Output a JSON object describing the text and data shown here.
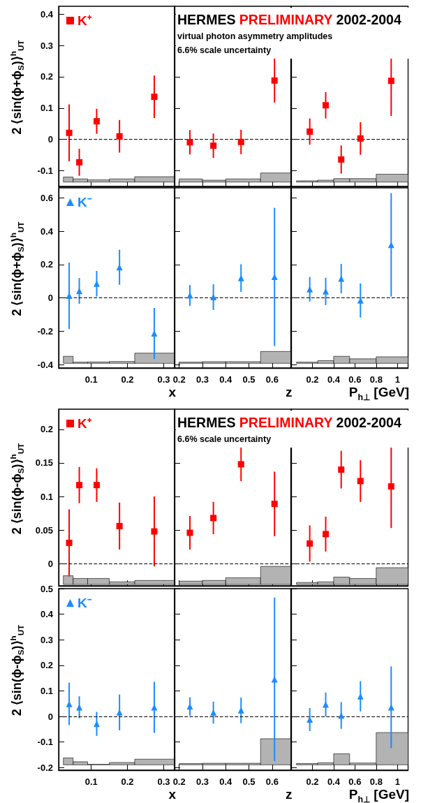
{
  "chart_data": [
    {
      "type": "scatter",
      "marker": "square",
      "ylabel": "2 ⟨sin(ϕ+ϕ$_{S}$)⟩$^{h}$$_{UT}$",
      "legend": "top left",
      "tick_labels": "y",
      "x": [
        0.039,
        0.067,
        0.115,
        0.178,
        0.274
      ],
      "xlim": [
        0.01,
        0.33
      ],
      "xticks": [
        0.1,
        0.2,
        0.3
      ],
      "ylim": [
        -0.15,
        0.425
      ],
      "yticks": [
        -0.1,
        0,
        0.1,
        0.2,
        0.3,
        0.4
      ],
      "series": [
        {
          "name": "K⁺",
          "color": "#ff0000",
          "values": [
            0.021,
            -0.073,
            0.058,
            0.01,
            0.136
          ],
          "errors": [
            0.091,
            0.043,
            0.04,
            0.052,
            0.068
          ]
        },
        {
          "type": "histogram",
          "color": "#b3b3b3",
          "bins": [
            0.023,
            0.05,
            0.09,
            0.15,
            0.22,
            0.33
          ],
          "base": [
            -0.136,
            -0.136,
            -0.136,
            -0.136,
            -0.136
          ],
          "values": [
            0.016,
            0.01,
            0.007,
            0.01,
            0.017
          ]
        }
      ],
      "ref_lines": [
        {
          "axis": "y",
          "value": 0,
          "line_style": "dashed"
        }
      ]
    },
    {
      "type": "scatter",
      "marker": "square",
      "title": "HERMES PRELIMINARY 2002-2004",
      "subtitle": "virtual photon asymmetry amplitudes\n6.6% scale uncertainty",
      "tick_labels": false,
      "x": [
        0.246,
        0.347,
        0.466,
        0.61
      ],
      "xlim": [
        0.18,
        0.68
      ],
      "xticks": [
        0.2,
        0.3,
        0.4,
        0.5,
        0.6
      ],
      "ylim": [
        -0.15,
        0.425
      ],
      "yticks": [
        -0.1,
        0,
        0.1,
        0.2,
        0.3,
        0.4
      ],
      "series": [
        {
          "color": "#ff0000",
          "values": [
            -0.009,
            -0.02,
            -0.008,
            0.188
          ],
          "errors": [
            0.039,
            0.039,
            0.039,
            0.07
          ]
        },
        {
          "type": "histogram",
          "color": "#b3b3b3",
          "bins": [
            0.2,
            0.3,
            0.4,
            0.55,
            0.68
          ],
          "base": [
            -0.136,
            -0.136,
            -0.136,
            -0.136
          ],
          "values": [
            0.01,
            0.006,
            0.01,
            0.029
          ]
        }
      ],
      "ref_lines": [
        {
          "axis": "y",
          "value": 0,
          "line_style": "dashed"
        }
      ]
    },
    {
      "type": "scatter",
      "marker": "square",
      "tick_labels": false,
      "x": [
        0.175,
        0.325,
        0.471,
        0.652,
        0.941
      ],
      "xlim": [
        0,
        1.1
      ],
      "xticks": [
        0.2,
        0.4,
        0.6,
        0.8,
        1
      ],
      "ylim": [
        -0.15,
        0.425
      ],
      "yticks": [
        -0.1,
        0,
        0.1,
        0.2,
        0.3,
        0.4
      ],
      "series": [
        {
          "color": "#ff0000",
          "values": [
            0.025,
            0.109,
            -0.064,
            0.003,
            0.187
          ],
          "errors": [
            0.042,
            0.042,
            0.045,
            0.052,
            0.112
          ]
        },
        {
          "type": "histogram",
          "color": "#b3b3b3",
          "bins": [
            0.05,
            0.25,
            0.4,
            0.55,
            0.8,
            1.1
          ],
          "base": [
            -0.136,
            -0.136,
            -0.136,
            -0.136,
            -0.136
          ],
          "values": [
            0.004,
            0.006,
            0.011,
            0.011,
            0.025
          ]
        }
      ],
      "ref_lines": [
        {
          "axis": "y",
          "value": 0,
          "line_style": "dashed"
        }
      ]
    },
    {
      "type": "scatter",
      "marker": "triangle",
      "ylabel": "2 ⟨sin(ϕ+ϕ$_{S}$)⟩$^{h}$$_{UT}$",
      "xlabel": "x",
      "legend": "top left",
      "x": [
        0.039,
        0.067,
        0.115,
        0.178,
        0.274
      ],
      "xlim": [
        0.01,
        0.33
      ],
      "xticks": [
        0.1,
        0.2,
        0.3
      ],
      "ylim": [
        -0.42,
        0.66
      ],
      "yticks": [
        -0.4,
        -0.2,
        0,
        0.2,
        0.4,
        0.6
      ],
      "series": [
        {
          "name": "K⁻",
          "color": "#1a8cff",
          "values": [
            0.013,
            0.042,
            0.085,
            0.184,
            -0.213
          ],
          "errors": [
            0.199,
            0.077,
            0.077,
            0.105,
            0.153
          ]
        },
        {
          "type": "histogram",
          "color": "#b3b3b3",
          "bins": [
            0.023,
            0.05,
            0.09,
            0.15,
            0.22,
            0.33
          ],
          "base": [
            -0.392,
            -0.392,
            -0.392,
            -0.392,
            -0.392
          ],
          "values": [
            0.042,
            0.007,
            0.008,
            0.011,
            0.061
          ]
        }
      ],
      "ref_lines": [
        {
          "axis": "y",
          "value": 0,
          "line_style": "dashed"
        }
      ]
    },
    {
      "type": "scatter",
      "marker": "triangle",
      "xlabel": "z",
      "tick_labels": "x",
      "x": [
        0.246,
        0.347,
        0.466,
        0.61
      ],
      "xlim": [
        0.18,
        0.68
      ],
      "xticks": [
        0.2,
        0.3,
        0.4,
        0.5,
        0.6
      ],
      "ylim": [
        -0.42,
        0.66
      ],
      "yticks": [
        -0.4,
        -0.2,
        0,
        0.2,
        0.4,
        0.6
      ],
      "series": [
        {
          "color": "#1a8cff",
          "values": [
            0.015,
            0.005,
            0.119,
            0.126
          ],
          "errors": [
            0.062,
            0.077,
            0.083,
            0.414
          ]
        },
        {
          "type": "histogram",
          "color": "#b3b3b3",
          "bins": [
            0.2,
            0.3,
            0.4,
            0.55,
            0.68
          ],
          "base": [
            -0.392,
            -0.392,
            -0.392,
            -0.392
          ],
          "values": [
            0.007,
            0.01,
            0.01,
            0.071
          ]
        }
      ],
      "ref_lines": [
        {
          "axis": "y",
          "value": 0,
          "line_style": "dashed"
        }
      ]
    },
    {
      "type": "scatter",
      "marker": "triangle",
      "xlabel": "P$_{h⊥}$ [GeV]",
      "tick_labels": "x",
      "x": [
        0.175,
        0.325,
        0.471,
        0.652,
        0.941
      ],
      "xlim": [
        0,
        1.1
      ],
      "xticks": [
        0.2,
        0.4,
        0.6,
        0.8,
        1
      ],
      "ylim": [
        -0.42,
        0.66
      ],
      "yticks": [
        -0.4,
        -0.2,
        0,
        0.2,
        0.4,
        0.6
      ],
      "series": [
        {
          "color": "#1a8cff",
          "values": [
            0.052,
            0.039,
            0.116,
            -0.015,
            0.318
          ],
          "errors": [
            0.074,
            0.082,
            0.088,
            0.102,
            0.31
          ]
        },
        {
          "type": "histogram",
          "color": "#b3b3b3",
          "bins": [
            0.05,
            0.25,
            0.4,
            0.55,
            0.8,
            1.1
          ],
          "base": [
            -0.392,
            -0.392,
            -0.392,
            -0.392,
            -0.392
          ],
          "values": [
            0.007,
            0.016,
            0.042,
            0.027,
            0.039
          ]
        }
      ],
      "ref_lines": [
        {
          "axis": "y",
          "value": 0,
          "line_style": "dashed"
        }
      ]
    },
    {
      "type": "scatter",
      "marker": "square",
      "ylabel": "2 ⟨sin(ϕ-ϕ$_{S}$)⟩$^{h}$$_{UT}$",
      "legend": "top left",
      "tick_labels": "y",
      "x": [
        0.039,
        0.067,
        0.115,
        0.178,
        0.274
      ],
      "xlim": [
        0.01,
        0.33
      ],
      "xticks": [
        0.1,
        0.2,
        0.3
      ],
      "ylim": [
        -0.033,
        0.23
      ],
      "yticks": [
        0,
        0.05,
        0.1,
        0.15,
        0.2
      ],
      "series": [
        {
          "name": "K⁺",
          "color": "#ff0000",
          "values": [
            0.031,
            0.117,
            0.117,
            0.056,
            0.048
          ],
          "errors": [
            0.05,
            0.027,
            0.025,
            0.035,
            0.052
          ]
        },
        {
          "type": "histogram",
          "color": "#b3b3b3",
          "bins": [
            0.023,
            0.05,
            0.09,
            0.15,
            0.22,
            0.33
          ],
          "base": [
            -0.031,
            -0.031,
            -0.031,
            -0.031,
            -0.031
          ],
          "values": [
            0.013,
            0.009,
            0.009,
            0.004,
            0.006
          ]
        }
      ],
      "ref_lines": [
        {
          "axis": "y",
          "value": 0,
          "line_style": "dashed"
        }
      ]
    },
    {
      "type": "scatter",
      "marker": "square",
      "title": "HERMES PRELIMINARY 2002-2004",
      "subtitle": "6.6% scale uncertainty",
      "tick_labels": false,
      "x": [
        0.246,
        0.347,
        0.466,
        0.61
      ],
      "xlim": [
        0.18,
        0.68
      ],
      "xticks": [
        0.2,
        0.3,
        0.4,
        0.5,
        0.6
      ],
      "ylim": [
        -0.033,
        0.23
      ],
      "yticks": [
        0,
        0.05,
        0.1,
        0.15,
        0.2
      ],
      "series": [
        {
          "color": "#ff0000",
          "values": [
            0.046,
            0.068,
            0.148,
            0.089
          ],
          "errors": [
            0.025,
            0.024,
            0.025,
            0.048
          ]
        },
        {
          "type": "histogram",
          "color": "#b3b3b3",
          "bins": [
            0.2,
            0.3,
            0.4,
            0.55,
            0.68
          ],
          "base": [
            -0.031,
            -0.031,
            -0.031,
            -0.031
          ],
          "values": [
            0.005,
            0.006,
            0.01,
            0.027
          ]
        }
      ],
      "ref_lines": [
        {
          "axis": "y",
          "value": 0,
          "line_style": "dashed"
        }
      ]
    },
    {
      "type": "scatter",
      "marker": "square",
      "tick_labels": false,
      "x": [
        0.175,
        0.325,
        0.471,
        0.652,
        0.941
      ],
      "xlim": [
        0,
        1.1
      ],
      "xticks": [
        0.2,
        0.4,
        0.6,
        0.8,
        1
      ],
      "ylim": [
        -0.033,
        0.23
      ],
      "yticks": [
        0,
        0.05,
        0.1,
        0.15,
        0.2
      ],
      "series": [
        {
          "color": "#ff0000",
          "values": [
            0.03,
            0.044,
            0.14,
            0.123,
            0.115
          ],
          "errors": [
            0.027,
            0.026,
            0.028,
            0.031,
            0.062
          ]
        },
        {
          "type": "histogram",
          "color": "#b3b3b3",
          "bins": [
            0.05,
            0.25,
            0.4,
            0.55,
            0.8,
            1.1
          ],
          "base": [
            -0.031,
            -0.031,
            -0.031,
            -0.031,
            -0.031
          ],
          "values": [
            0.003,
            0.004,
            0.011,
            0.009,
            0.025
          ]
        }
      ],
      "ref_lines": [
        {
          "axis": "y",
          "value": 0,
          "line_style": "dashed"
        }
      ]
    },
    {
      "type": "scatter",
      "marker": "triangle",
      "ylabel": "2 ⟨sin(ϕ-ϕ$_{S}$)⟩$^{h}$$_{UT}$",
      "xlabel": "x",
      "legend": "top left",
      "x": [
        0.039,
        0.067,
        0.115,
        0.178,
        0.274
      ],
      "xlim": [
        0.01,
        0.33
      ],
      "xticks": [
        0.1,
        0.2,
        0.3
      ],
      "ylim": [
        -0.21,
        0.5
      ],
      "yticks": [
        -0.2,
        -0.1,
        0,
        0.1,
        0.2,
        0.3,
        0.4,
        0.5
      ],
      "series": [
        {
          "name": "K⁻",
          "color": "#1a8cff",
          "values": [
            0.049,
            0.036,
            -0.029,
            0.016,
            0.036
          ],
          "errors": [
            0.083,
            0.043,
            0.047,
            0.07,
            0.1
          ]
        },
        {
          "type": "histogram",
          "color": "#b3b3b3",
          "bins": [
            0.023,
            0.05,
            0.09,
            0.15,
            0.22,
            0.33
          ],
          "base": [
            -0.189,
            -0.189,
            -0.189,
            -0.189,
            -0.189
          ],
          "values": [
            0.027,
            0.012,
            0.002,
            0.009,
            0.022
          ]
        }
      ],
      "ref_lines": [
        {
          "axis": "y",
          "value": 0,
          "line_style": "dashed"
        }
      ]
    },
    {
      "type": "scatter",
      "marker": "triangle",
      "xlabel": "z",
      "tick_labels": "x",
      "x": [
        0.246,
        0.347,
        0.466,
        0.61
      ],
      "xlim": [
        0.18,
        0.68
      ],
      "xticks": [
        0.2,
        0.3,
        0.4,
        0.5,
        0.6
      ],
      "ylim": [
        -0.21,
        0.5
      ],
      "yticks": [
        -0.2,
        -0.1,
        0,
        0.1,
        0.2,
        0.3,
        0.4,
        0.5
      ],
      "series": [
        {
          "color": "#1a8cff",
          "values": [
            0.039,
            0.015,
            0.024,
            0.145
          ],
          "errors": [
            0.036,
            0.043,
            0.05,
            0.32
          ]
        },
        {
          "type": "histogram",
          "color": "#b3b3b3",
          "bins": [
            0.2,
            0.3,
            0.4,
            0.55,
            0.68
          ],
          "base": [
            -0.189,
            -0.189,
            -0.189,
            -0.189
          ],
          "values": [
            0.005,
            0.006,
            0.006,
            0.102
          ]
        }
      ],
      "ref_lines": [
        {
          "axis": "y",
          "value": 0,
          "line_style": "dashed"
        }
      ]
    },
    {
      "type": "scatter",
      "marker": "triangle",
      "xlabel": "P$_{h⊥}$ [GeV]",
      "tick_labels": "x",
      "x": [
        0.175,
        0.325,
        0.471,
        0.652,
        0.941
      ],
      "xlim": [
        0,
        1.1
      ],
      "xticks": [
        0.2,
        0.4,
        0.6,
        0.8,
        1
      ],
      "ylim": [
        -0.21,
        0.5
      ],
      "yticks": [
        -0.2,
        -0.1,
        0,
        0.1,
        0.2,
        0.3,
        0.4,
        0.5
      ],
      "series": [
        {
          "color": "#1a8cff",
          "values": [
            -0.012,
            0.047,
            0.004,
            0.079,
            0.036
          ],
          "errors": [
            0.045,
            0.047,
            0.052,
            0.059,
            0.16
          ]
        },
        {
          "type": "histogram",
          "color": "#b3b3b3",
          "bins": [
            0.05,
            0.25,
            0.4,
            0.55,
            0.8,
            1.1
          ],
          "base": [
            -0.189,
            -0.189,
            -0.189,
            -0.189,
            -0.189
          ],
          "values": [
            0.005,
            0.008,
            0.043,
            0.007,
            0.126
          ]
        }
      ],
      "ref_lines": [
        {
          "axis": "y",
          "value": 0,
          "line_style": "dashed"
        }
      ]
    }
  ]
}
